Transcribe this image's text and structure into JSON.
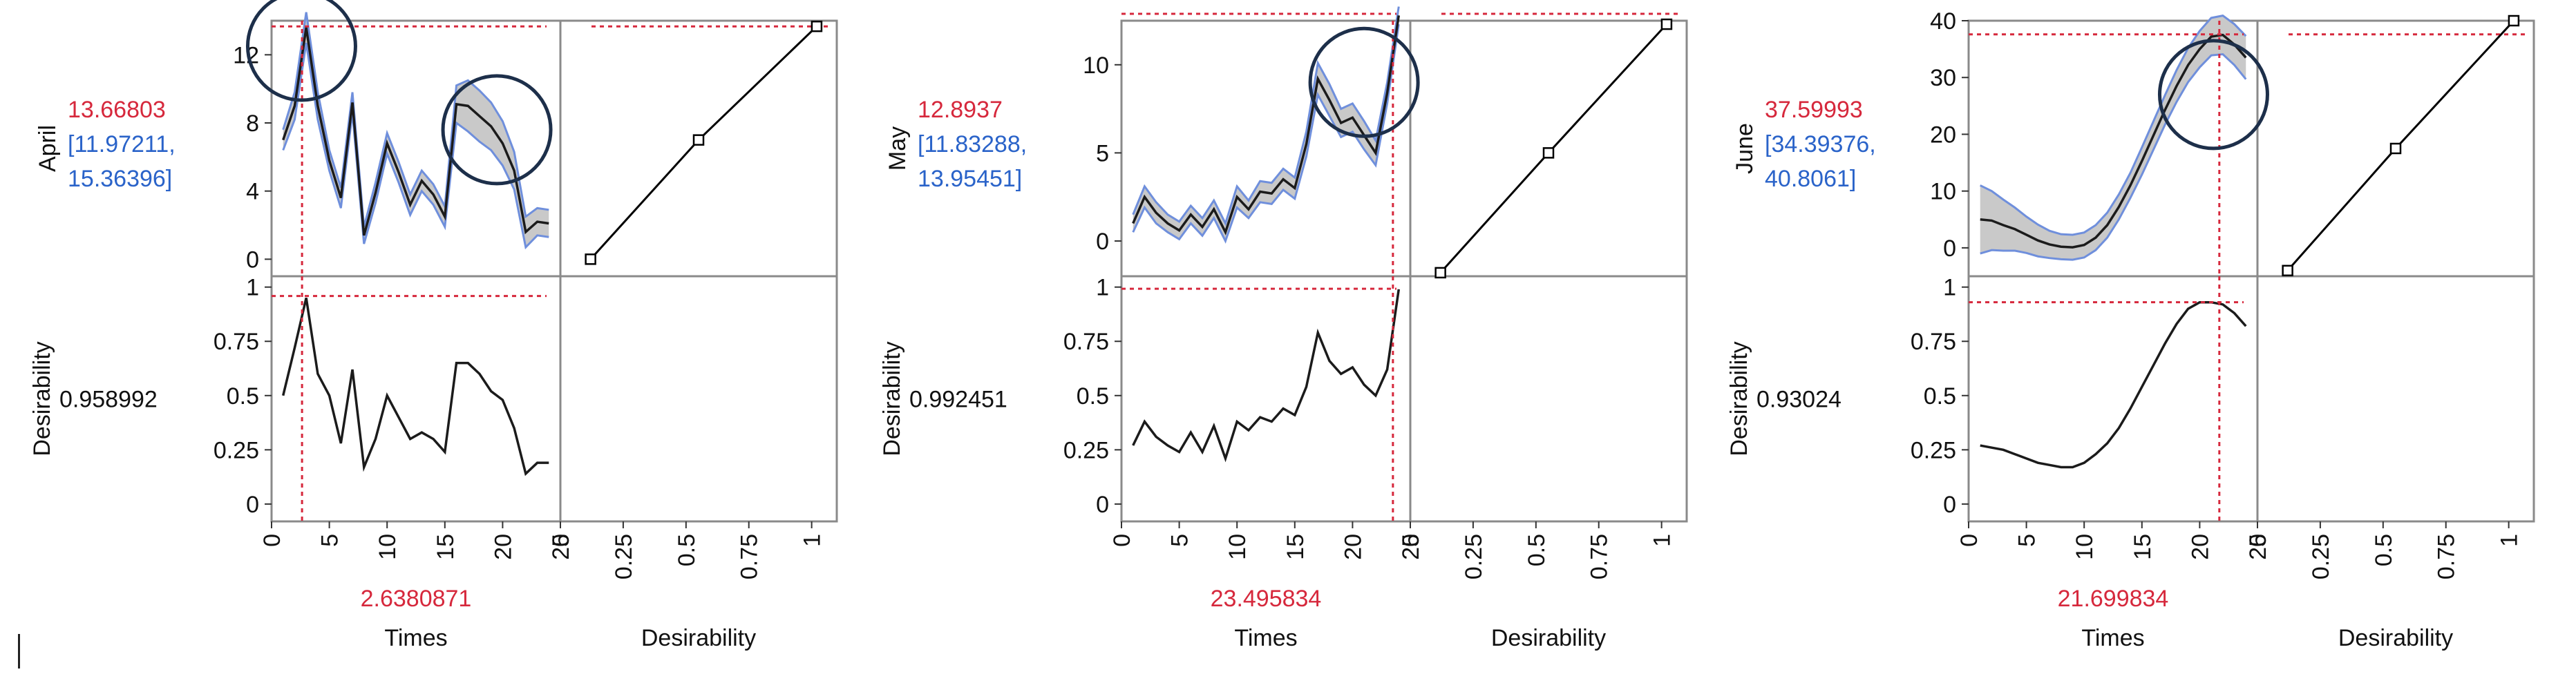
{
  "colors": {
    "value_text": "#d6283c",
    "interval_text": "#2a63c9",
    "ref_line": "#d6283c",
    "band_fill": "#c9c9c9",
    "band_edge": "#6f8fdc",
    "prediction_line": "#1b1b1b",
    "circle": "#1d2f4a",
    "frame": "#8a8a8a",
    "marker": "#000000"
  },
  "axis_labels": {
    "times": "Times",
    "desirability": "Desirability",
    "desirability_row": "Desirability"
  },
  "panels": [
    {
      "response": "April",
      "predicted": "13.66803",
      "ci_line1": "[11.97211,",
      "ci_line2": "15.36396]",
      "desirability_value": "0.958992",
      "times_value": "2.6380871"
    },
    {
      "response": "May",
      "predicted": "12.8937",
      "ci_line1": "[11.83288,",
      "ci_line2": "13.95451]",
      "desirability_value": "0.992451",
      "times_value": "23.495834"
    },
    {
      "response": "June",
      "predicted": "37.59993",
      "ci_line1": "[34.39376,",
      "ci_line2": "40.8061]",
      "desirability_value": "0.93024",
      "times_value": "21.699834"
    }
  ],
  "chart_data": [
    {
      "type": "line",
      "panel": "April",
      "xlabel": "Times",
      "ylabel": "April",
      "xlim": [
        0,
        25
      ],
      "x_ticks": [
        "0",
        "5",
        "10",
        "15",
        "20",
        "25"
      ],
      "ylim": [
        -1,
        14
      ],
      "y_ticks": [
        "0",
        "4",
        "8",
        "12"
      ],
      "current_x": 2.6380871,
      "current_y": 13.66803,
      "x": [
        1,
        2,
        3,
        4,
        5,
        6,
        7,
        8,
        9,
        10,
        11,
        12,
        13,
        14,
        15,
        16,
        17,
        18,
        19,
        20,
        21,
        22,
        23,
        24
      ],
      "prediction": [
        7,
        9,
        13.6,
        9,
        5.8,
        3.6,
        9.2,
        1.4,
        3.9,
        6.8,
        5.1,
        3.2,
        4.6,
        3.8,
        2.5,
        9.1,
        9,
        8.4,
        7.8,
        6.8,
        5.2,
        1.6,
        2.2,
        2.1
      ],
      "ci_half_width": [
        0.6,
        0.8,
        0.9,
        0.8,
        0.6,
        0.6,
        0.6,
        0.5,
        0.6,
        0.6,
        0.6,
        0.6,
        0.6,
        0.6,
        0.6,
        1.1,
        1.5,
        1.5,
        1.4,
        1.3,
        1.1,
        0.9,
        0.8,
        0.8
      ],
      "circles": [
        {
          "x": 2.6,
          "y": 12.5
        },
        {
          "x": 19.5,
          "y": 7.6
        }
      ],
      "desirability": {
        "ylim": [
          -0.08,
          1.05
        ],
        "y_ticks": [
          "0",
          "0.25",
          "0.5",
          "0.75",
          "1"
        ],
        "current": 0.958992,
        "values": [
          0.5,
          0.72,
          0.95,
          0.6,
          0.5,
          0.28,
          0.62,
          0.17,
          0.3,
          0.5,
          0.4,
          0.3,
          0.33,
          0.3,
          0.24,
          0.65,
          0.65,
          0.6,
          0.52,
          0.48,
          0.35,
          0.14,
          0.19,
          0.19
        ]
      },
      "desirability_function": {
        "xlim": [
          0,
          1.1
        ],
        "x_ticks": [
          "0",
          "0.25",
          "0.5",
          "0.75",
          "1"
        ],
        "points": [
          [
            0,
            0
          ],
          [
            0.5,
            7
          ],
          [
            1,
            13.66803
          ]
        ]
      }
    },
    {
      "type": "line",
      "panel": "May",
      "xlabel": "Times",
      "ylabel": "May",
      "xlim": [
        0,
        25
      ],
      "x_ticks": [
        "0",
        "5",
        "10",
        "15",
        "20",
        "25"
      ],
      "ylim": [
        -2,
        12.5
      ],
      "y_ticks": [
        "0",
        "5",
        "10"
      ],
      "current_x": 23.495834,
      "current_y": 12.8937,
      "x": [
        1,
        2,
        3,
        4,
        5,
        6,
        7,
        8,
        9,
        10,
        11,
        12,
        13,
        14,
        15,
        16,
        17,
        18,
        19,
        20,
        21,
        22,
        23,
        24
      ],
      "prediction": [
        1,
        2.5,
        1.6,
        1,
        0.6,
        1.5,
        0.8,
        1.8,
        0.5,
        2.5,
        1.8,
        2.8,
        2.7,
        3.5,
        3,
        5.5,
        9.2,
        8,
        6.7,
        7,
        6,
        5,
        8.4,
        12.8
      ],
      "ci_half_width": [
        0.5,
        0.6,
        0.6,
        0.5,
        0.5,
        0.5,
        0.5,
        0.5,
        0.5,
        0.6,
        0.5,
        0.6,
        0.6,
        0.6,
        0.6,
        0.7,
        0.9,
        0.9,
        0.8,
        0.8,
        0.8,
        0.7,
        0.6,
        0.5
      ],
      "circles": [
        {
          "x": 21,
          "y": 9
        }
      ],
      "desirability": {
        "ylim": [
          -0.08,
          1.05
        ],
        "y_ticks": [
          "0",
          "0.25",
          "0.5",
          "0.75",
          "1"
        ],
        "current": 0.992451,
        "values": [
          0.27,
          0.38,
          0.31,
          0.27,
          0.24,
          0.33,
          0.24,
          0.36,
          0.21,
          0.38,
          0.34,
          0.4,
          0.38,
          0.44,
          0.41,
          0.54,
          0.79,
          0.66,
          0.6,
          0.63,
          0.55,
          0.5,
          0.62,
          0.99
        ]
      },
      "desirability_function": {
        "xlim": [
          0,
          1.1
        ],
        "x_ticks": [
          "0",
          "0.25",
          "0.5",
          "0.75",
          "1"
        ],
        "points": [
          [
            0,
            -1.8
          ],
          [
            0.5,
            5
          ],
          [
            1,
            12.3
          ]
        ]
      }
    },
    {
      "type": "line",
      "panel": "June",
      "xlabel": "Times",
      "ylabel": "June",
      "xlim": [
        0,
        25
      ],
      "x_ticks": [
        "0",
        "5",
        "10",
        "15",
        "20",
        "25"
      ],
      "ylim": [
        -5,
        40
      ],
      "y_ticks": [
        "0",
        "10",
        "20",
        "30",
        "40"
      ],
      "current_x": 21.699834,
      "current_y": 37.59993,
      "x": [
        1,
        2,
        3,
        4,
        5,
        6,
        7,
        8,
        9,
        10,
        11,
        12,
        13,
        14,
        15,
        16,
        17,
        18,
        19,
        20,
        21,
        22,
        23,
        24
      ],
      "prediction": [
        5,
        4.8,
        4,
        3.3,
        2.3,
        1.3,
        0.6,
        0.2,
        0.1,
        0.5,
        1.8,
        4,
        7.2,
        11,
        15.3,
        19.8,
        24.3,
        28.5,
        32.2,
        35,
        37.2,
        37.5,
        35.8,
        33.5
      ],
      "ci_half_width": [
        6,
        5.2,
        4.5,
        3.8,
        3.2,
        2.8,
        2.4,
        2.2,
        2.2,
        2.2,
        2.2,
        2.2,
        2.2,
        2.2,
        2.4,
        2.5,
        2.6,
        2.8,
        3,
        3.2,
        3.3,
        3.4,
        3.6,
        3.8
      ],
      "circles": [
        {
          "x": 21.2,
          "y": 27
        }
      ],
      "desirability": {
        "ylim": [
          -0.08,
          1.05
        ],
        "y_ticks": [
          "0",
          "0.25",
          "0.5",
          "0.75",
          "1"
        ],
        "current": 0.93024,
        "values": [
          0.27,
          0.26,
          0.25,
          0.23,
          0.21,
          0.19,
          0.18,
          0.17,
          0.17,
          0.19,
          0.23,
          0.28,
          0.35,
          0.44,
          0.54,
          0.64,
          0.74,
          0.83,
          0.9,
          0.93,
          0.93,
          0.92,
          0.88,
          0.82
        ]
      },
      "desirability_function": {
        "xlim": [
          0,
          1.1
        ],
        "x_ticks": [
          "0",
          "0.25",
          "0.5",
          "0.75",
          "1"
        ],
        "points": [
          [
            0,
            -4
          ],
          [
            0.5,
            17.5
          ],
          [
            1,
            40
          ]
        ]
      }
    }
  ]
}
